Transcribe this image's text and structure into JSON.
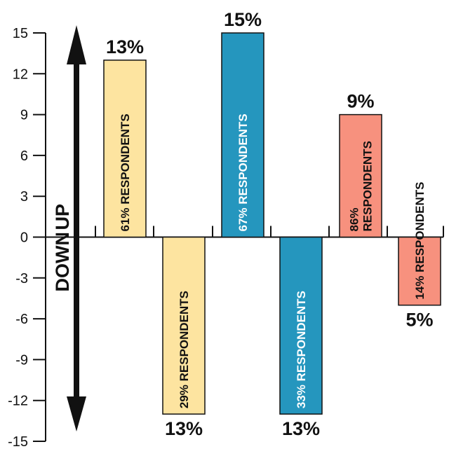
{
  "chart_data": {
    "type": "bar",
    "title": "",
    "xlabel": "",
    "ylabel": "",
    "ylim": [
      -15,
      15
    ],
    "yticks": [
      15,
      12,
      9,
      6,
      3,
      0,
      -3,
      -6,
      -9,
      -12,
      -15
    ],
    "direction_labels": {
      "down": "DOWN",
      "up": "UP"
    },
    "bars": [
      {
        "value": 13,
        "value_label": "13%",
        "text": "61% RESPONDENTS",
        "lines": [
          "61% RESPONDENTS"
        ],
        "color": "#fde4a0",
        "text_color": "#111111"
      },
      {
        "value": -13,
        "value_label": "13%",
        "text": "29% RESPONDENTS",
        "lines": [
          "29% RESPONDENTS"
        ],
        "color": "#fde4a0",
        "text_color": "#111111"
      },
      {
        "value": 15,
        "value_label": "15%",
        "text": "67% RESPONDENTS",
        "lines": [
          "67% RESPONDENTS"
        ],
        "color": "#2596be",
        "text_color": "#ffffff"
      },
      {
        "value": -13,
        "value_label": "13%",
        "text": "33% RESPONDENTS",
        "lines": [
          "33% RESPONDENTS"
        ],
        "color": "#2596be",
        "text_color": "#ffffff"
      },
      {
        "value": 9,
        "value_label": "9%",
        "text": "86% RESPONDENTS",
        "lines": [
          "86%",
          "RESPONDENTS"
        ],
        "color": "#f7917e",
        "text_color": "#111111"
      },
      {
        "value": -5,
        "value_label": "5%",
        "text": "14% RESPONDENTS",
        "lines": [
          "14% RESPONDENTS"
        ],
        "color": "#f7917e",
        "text_color": "#111111"
      }
    ]
  }
}
